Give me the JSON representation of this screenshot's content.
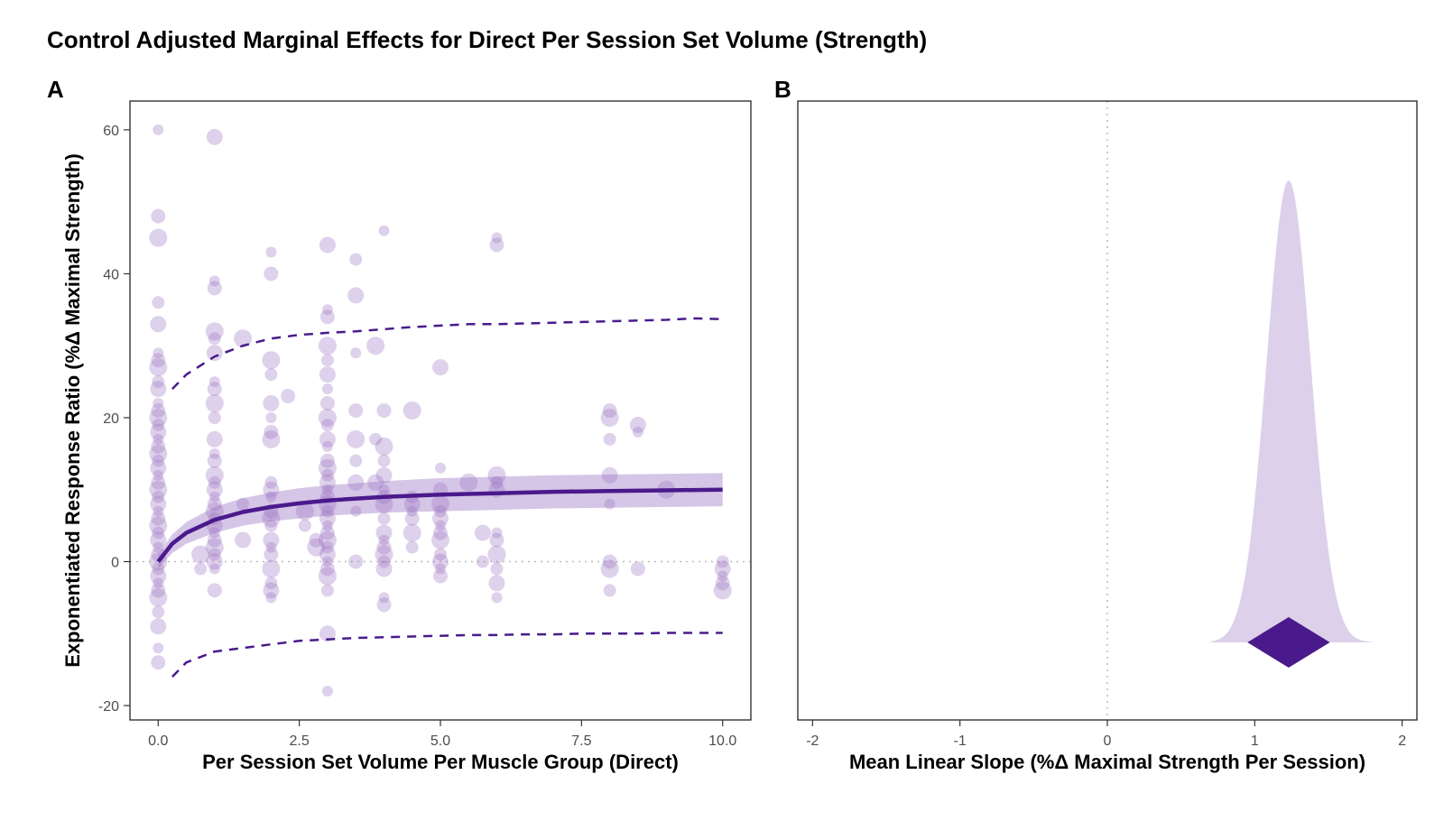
{
  "figure": {
    "title": "Control Adjusted Marginal Effects for Direct Per Session Set Volume (Strength)",
    "colors": {
      "point": "#9b72c2",
      "line": "#4a1a8c",
      "band": "#c7b2de",
      "density": "#ddd0ea",
      "diamond": "#4a1a8c",
      "reference": "#bbbbbb"
    }
  },
  "chart_data": [
    {
      "panel": "A",
      "type": "scatter",
      "title": "",
      "xlabel": "Per Session Set Volume Per Muscle Group (Direct)",
      "ylabel": "Exponentiated Response Ratio (%Δ Maximal Strength)",
      "xlim": [
        -1,
        21
      ],
      "ylim": [
        -22,
        64
      ],
      "xticks": [
        0,
        5,
        10,
        15,
        20
      ],
      "xtick_labels": [
        "0.0",
        "2.5",
        "5.0",
        "7.5",
        "10.0"
      ],
      "yticks": [
        -20,
        0,
        20,
        40,
        60
      ],
      "ytick_labels": [
        "-20",
        "0",
        "20",
        "40",
        "60"
      ],
      "reference_y": 0,
      "points": [
        {
          "x": 0,
          "y": 60
        },
        {
          "x": 0,
          "y": 48
        },
        {
          "x": 0,
          "y": 45
        },
        {
          "x": 0,
          "y": 36
        },
        {
          "x": 0,
          "y": 33
        },
        {
          "x": 0,
          "y": 29
        },
        {
          "x": 0,
          "y": 28
        },
        {
          "x": 0,
          "y": 27
        },
        {
          "x": 0,
          "y": 25
        },
        {
          "x": 0,
          "y": 24
        },
        {
          "x": 0,
          "y": 22
        },
        {
          "x": 0,
          "y": 21
        },
        {
          "x": 0,
          "y": 20
        },
        {
          "x": 0,
          "y": 19
        },
        {
          "x": 0,
          "y": 18
        },
        {
          "x": 0,
          "y": 17
        },
        {
          "x": 0,
          "y": 16
        },
        {
          "x": 0,
          "y": 15
        },
        {
          "x": 0,
          "y": 14
        },
        {
          "x": 0,
          "y": 13
        },
        {
          "x": 0,
          "y": 12
        },
        {
          "x": 0,
          "y": 11
        },
        {
          "x": 0,
          "y": 10
        },
        {
          "x": 0,
          "y": 9
        },
        {
          "x": 0,
          "y": 8
        },
        {
          "x": 0,
          "y": 7
        },
        {
          "x": 0,
          "y": 6
        },
        {
          "x": 0,
          "y": 5
        },
        {
          "x": 0,
          "y": 4
        },
        {
          "x": 0,
          "y": 3
        },
        {
          "x": 0,
          "y": 2
        },
        {
          "x": 0,
          "y": 1
        },
        {
          "x": 0,
          "y": 0
        },
        {
          "x": 0,
          "y": -1
        },
        {
          "x": 0,
          "y": -2
        },
        {
          "x": 0,
          "y": -3
        },
        {
          "x": 0,
          "y": -4
        },
        {
          "x": 0,
          "y": -5
        },
        {
          "x": 0,
          "y": -7
        },
        {
          "x": 0,
          "y": -9
        },
        {
          "x": 0,
          "y": -12
        },
        {
          "x": 0,
          "y": -14
        },
        {
          "x": 1.5,
          "y": 1
        },
        {
          "x": 1.5,
          "y": -1
        },
        {
          "x": 2,
          "y": 59
        },
        {
          "x": 2,
          "y": 39
        },
        {
          "x": 2,
          "y": 38
        },
        {
          "x": 2,
          "y": 32
        },
        {
          "x": 2,
          "y": 31
        },
        {
          "x": 2,
          "y": 29
        },
        {
          "x": 2,
          "y": 25
        },
        {
          "x": 2,
          "y": 24
        },
        {
          "x": 2,
          "y": 22
        },
        {
          "x": 2,
          "y": 20
        },
        {
          "x": 2,
          "y": 17
        },
        {
          "x": 2,
          "y": 15
        },
        {
          "x": 2,
          "y": 14
        },
        {
          "x": 2,
          "y": 12
        },
        {
          "x": 2,
          "y": 11
        },
        {
          "x": 2,
          "y": 10
        },
        {
          "x": 2,
          "y": 9
        },
        {
          "x": 2,
          "y": 8
        },
        {
          "x": 2,
          "y": 7
        },
        {
          "x": 2,
          "y": 6
        },
        {
          "x": 2,
          "y": 5
        },
        {
          "x": 2,
          "y": 4
        },
        {
          "x": 2,
          "y": 3
        },
        {
          "x": 2,
          "y": 2
        },
        {
          "x": 2,
          "y": 1
        },
        {
          "x": 2,
          "y": 0
        },
        {
          "x": 2,
          "y": -1
        },
        {
          "x": 2,
          "y": -4
        },
        {
          "x": 3,
          "y": 31
        },
        {
          "x": 3,
          "y": 8
        },
        {
          "x": 3,
          "y": 3
        },
        {
          "x": 4,
          "y": 43
        },
        {
          "x": 4,
          "y": 40
        },
        {
          "x": 4,
          "y": 28
        },
        {
          "x": 4,
          "y": 26
        },
        {
          "x": 4,
          "y": 22
        },
        {
          "x": 4,
          "y": 20
        },
        {
          "x": 4,
          "y": 18
        },
        {
          "x": 4,
          "y": 17
        },
        {
          "x": 4,
          "y": 11
        },
        {
          "x": 4,
          "y": 10
        },
        {
          "x": 4,
          "y": 9
        },
        {
          "x": 4,
          "y": 7
        },
        {
          "x": 4,
          "y": 6
        },
        {
          "x": 4,
          "y": 5
        },
        {
          "x": 4,
          "y": 3
        },
        {
          "x": 4,
          "y": 2
        },
        {
          "x": 4,
          "y": 1
        },
        {
          "x": 4,
          "y": -1
        },
        {
          "x": 4,
          "y": -3
        },
        {
          "x": 4,
          "y": -4
        },
        {
          "x": 4,
          "y": -5
        },
        {
          "x": 4.6,
          "y": 23
        },
        {
          "x": 5.2,
          "y": 7
        },
        {
          "x": 5.2,
          "y": 5
        },
        {
          "x": 6,
          "y": 44
        },
        {
          "x": 6,
          "y": 35
        },
        {
          "x": 6,
          "y": 34
        },
        {
          "x": 6,
          "y": 30
        },
        {
          "x": 6,
          "y": 28
        },
        {
          "x": 6,
          "y": 26
        },
        {
          "x": 6,
          "y": 24
        },
        {
          "x": 6,
          "y": 22
        },
        {
          "x": 6,
          "y": 20
        },
        {
          "x": 6,
          "y": 19
        },
        {
          "x": 6,
          "y": 17
        },
        {
          "x": 6,
          "y": 16
        },
        {
          "x": 6,
          "y": 14
        },
        {
          "x": 6,
          "y": 13
        },
        {
          "x": 6,
          "y": 12
        },
        {
          "x": 6,
          "y": 11
        },
        {
          "x": 6,
          "y": 10
        },
        {
          "x": 6,
          "y": 9
        },
        {
          "x": 6,
          "y": 8
        },
        {
          "x": 6,
          "y": 7
        },
        {
          "x": 6,
          "y": 6
        },
        {
          "x": 6,
          "y": 5
        },
        {
          "x": 6,
          "y": 4
        },
        {
          "x": 6,
          "y": 3
        },
        {
          "x": 6,
          "y": 2
        },
        {
          "x": 6,
          "y": 1
        },
        {
          "x": 6,
          "y": 0
        },
        {
          "x": 6,
          "y": -1
        },
        {
          "x": 6,
          "y": -2
        },
        {
          "x": 6,
          "y": -4
        },
        {
          "x": 6,
          "y": -10
        },
        {
          "x": 6,
          "y": -18
        },
        {
          "x": 5.6,
          "y": 3
        },
        {
          "x": 5.6,
          "y": 2
        },
        {
          "x": 7,
          "y": 42
        },
        {
          "x": 7,
          "y": 37
        },
        {
          "x": 7,
          "y": 29
        },
        {
          "x": 7,
          "y": 21
        },
        {
          "x": 7,
          "y": 17
        },
        {
          "x": 7,
          "y": 14
        },
        {
          "x": 7,
          "y": 11
        },
        {
          "x": 7,
          "y": 7
        },
        {
          "x": 7,
          "y": 0
        },
        {
          "x": 7.7,
          "y": 30
        },
        {
          "x": 7.7,
          "y": 17
        },
        {
          "x": 7.7,
          "y": 11
        },
        {
          "x": 8,
          "y": 46
        },
        {
          "x": 8,
          "y": 21
        },
        {
          "x": 8,
          "y": 16
        },
        {
          "x": 8,
          "y": 14
        },
        {
          "x": 8,
          "y": 12
        },
        {
          "x": 8,
          "y": 10
        },
        {
          "x": 8,
          "y": 9
        },
        {
          "x": 8,
          "y": 8
        },
        {
          "x": 8,
          "y": 6
        },
        {
          "x": 8,
          "y": 4
        },
        {
          "x": 8,
          "y": 3
        },
        {
          "x": 8,
          "y": 2
        },
        {
          "x": 8,
          "y": 1
        },
        {
          "x": 8,
          "y": 0
        },
        {
          "x": 8,
          "y": -1
        },
        {
          "x": 8,
          "y": -5
        },
        {
          "x": 8,
          "y": -6
        },
        {
          "x": 9,
          "y": 21
        },
        {
          "x": 9,
          "y": 9
        },
        {
          "x": 9,
          "y": 8
        },
        {
          "x": 9,
          "y": 7
        },
        {
          "x": 9,
          "y": 6
        },
        {
          "x": 9,
          "y": 4
        },
        {
          "x": 9,
          "y": 2
        },
        {
          "x": 10,
          "y": 27
        },
        {
          "x": 10,
          "y": 13
        },
        {
          "x": 10,
          "y": 10
        },
        {
          "x": 10,
          "y": 8
        },
        {
          "x": 10,
          "y": 7
        },
        {
          "x": 10,
          "y": 6
        },
        {
          "x": 10,
          "y": 5
        },
        {
          "x": 10,
          "y": 4
        },
        {
          "x": 10,
          "y": 3
        },
        {
          "x": 10,
          "y": 1
        },
        {
          "x": 10,
          "y": 0
        },
        {
          "x": 10,
          "y": -1
        },
        {
          "x": 10,
          "y": -2
        },
        {
          "x": 11,
          "y": 11
        },
        {
          "x": 11.5,
          "y": 0
        },
        {
          "x": 11.5,
          "y": 4
        },
        {
          "x": 12,
          "y": 45
        },
        {
          "x": 12,
          "y": 44
        },
        {
          "x": 12,
          "y": 12
        },
        {
          "x": 12,
          "y": 11
        },
        {
          "x": 12,
          "y": 10
        },
        {
          "x": 12,
          "y": 4
        },
        {
          "x": 12,
          "y": 3
        },
        {
          "x": 12,
          "y": 1
        },
        {
          "x": 12,
          "y": -1
        },
        {
          "x": 12,
          "y": -3
        },
        {
          "x": 12,
          "y": -5
        },
        {
          "x": 16,
          "y": 21
        },
        {
          "x": 16,
          "y": 20
        },
        {
          "x": 16,
          "y": 17
        },
        {
          "x": 16,
          "y": 12
        },
        {
          "x": 16,
          "y": 8
        },
        {
          "x": 16,
          "y": 0
        },
        {
          "x": 16,
          "y": -1
        },
        {
          "x": 16,
          "y": -4
        },
        {
          "x": 17,
          "y": 19
        },
        {
          "x": 17,
          "y": 18
        },
        {
          "x": 17,
          "y": -1
        },
        {
          "x": 18,
          "y": 10
        },
        {
          "x": 20,
          "y": 0
        },
        {
          "x": 20,
          "y": -1
        },
        {
          "x": 20,
          "y": -2
        },
        {
          "x": 20,
          "y": -3
        },
        {
          "x": 20,
          "y": -4
        }
      ],
      "fit": {
        "x": [
          0,
          0.5,
          1,
          2,
          3,
          4,
          5,
          6,
          8,
          10,
          12,
          14,
          16,
          18,
          20
        ],
        "y": [
          0,
          2.5,
          4.0,
          5.8,
          6.9,
          7.6,
          8.1,
          8.5,
          9.0,
          9.3,
          9.5,
          9.7,
          9.8,
          9.9,
          10.0
        ],
        "band_lo": [
          -1,
          1.2,
          2.5,
          4.0,
          5.0,
          5.6,
          6.0,
          6.4,
          6.8,
          7.0,
          7.2,
          7.4,
          7.5,
          7.6,
          7.7
        ],
        "band_hi": [
          1,
          3.8,
          5.5,
          7.6,
          8.8,
          9.6,
          10.2,
          10.6,
          11.2,
          11.6,
          11.8,
          12.0,
          12.1,
          12.2,
          12.3
        ]
      },
      "prediction_interval": {
        "x": [
          0.5,
          1,
          2,
          3,
          4,
          5,
          6,
          7,
          8,
          9,
          10,
          11,
          12,
          13,
          14,
          15,
          16,
          17,
          18,
          19,
          20
        ],
        "hi": [
          24,
          26,
          28.5,
          30,
          31,
          31.5,
          31.8,
          32,
          32.3,
          32.6,
          32.8,
          33,
          33,
          33.1,
          33.2,
          33.3,
          33.4,
          33.5,
          33.6,
          33.8,
          33.7
        ],
        "lo": [
          -16,
          -14,
          -12.5,
          -12,
          -11.5,
          -11,
          -10.8,
          -10.6,
          -10.5,
          -10.4,
          -10.3,
          -10.2,
          -10.2,
          -10.1,
          -10.1,
          -10.0,
          -10.0,
          -10.0,
          -9.9,
          -9.9,
          -9.9
        ]
      }
    },
    {
      "panel": "B",
      "type": "area",
      "title": "",
      "xlabel": "Mean Linear Slope (%Δ Maximal Strength Per Session)",
      "ylabel": "",
      "xlim": [
        -2.1,
        2.1
      ],
      "xticks": [
        -2,
        -1,
        0,
        1,
        2
      ],
      "xtick_labels": [
        "-2",
        "-1",
        "0",
        "1",
        "2"
      ],
      "reference_x": 0,
      "density": {
        "mean": 1.23,
        "sd": 0.15,
        "from": 0.7,
        "to": 1.8
      },
      "estimate": {
        "value": 1.23,
        "lower": 0.95,
        "upper": 1.51
      }
    }
  ]
}
